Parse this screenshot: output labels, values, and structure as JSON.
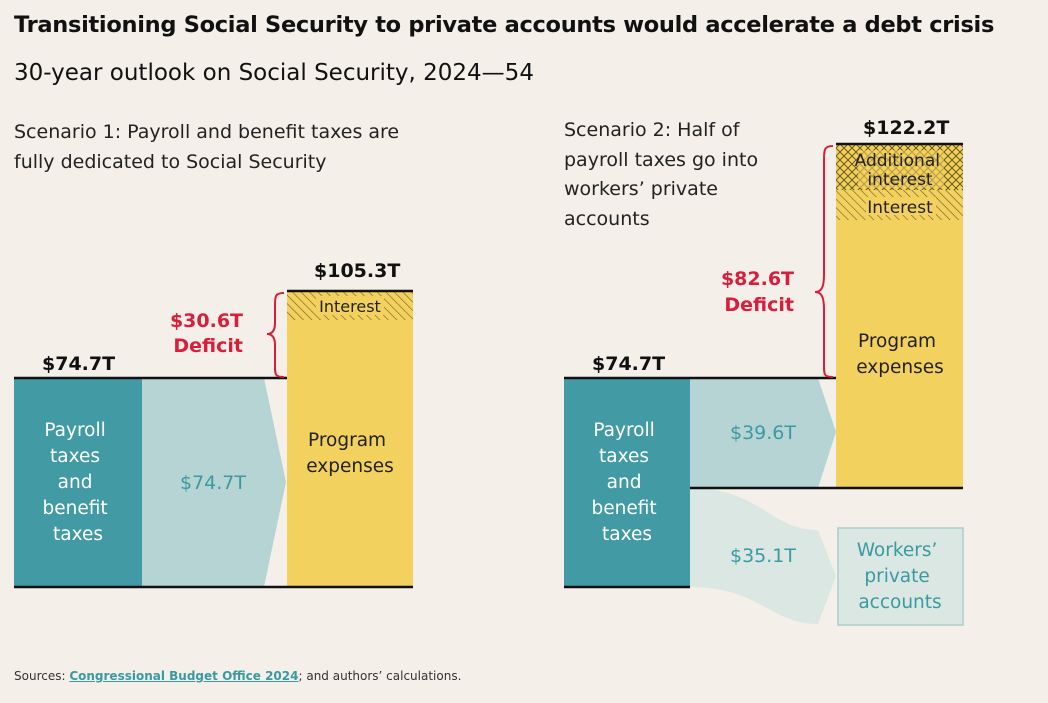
{
  "title": "Transitioning Social Security to private accounts would accelerate a debt crisis",
  "subtitle": "30-year outlook on Social Security, 2024—54",
  "colors": {
    "background": "#f4efe8",
    "teal_dark": "#429ba4",
    "teal_light": "#b7d4d4",
    "teal_lighter": "#dbe7e2",
    "yellow": "#f3d15f",
    "deficit_red": "#d81e3a",
    "teal_text": "#3a9aa1"
  },
  "scenario1": {
    "label": "Scenario 1: Payroll and benefit taxes are fully dedicated to Social Security",
    "revenue_total": "$74.7T",
    "revenue_block": [
      "Payroll",
      "taxes",
      "and",
      "benefit",
      "taxes"
    ],
    "flow_value": "$74.7T",
    "expense_total": "$105.3T",
    "interest_label": "Interest",
    "program_label": [
      "Program",
      "expenses"
    ],
    "deficit_value": "$30.6T",
    "deficit_label": "Deficit"
  },
  "scenario2": {
    "label": "Scenario 2: Half of payroll taxes go into workers’ private accounts",
    "revenue_total": "$74.7T",
    "revenue_block": [
      "Payroll",
      "taxes",
      "and",
      "benefit",
      "taxes"
    ],
    "flow_to_program": "$39.6T",
    "flow_to_private": "$35.1T",
    "expense_total": "$122.2T",
    "additional_interest_label": [
      "Additional",
      "interest"
    ],
    "interest_label": "Interest",
    "program_label": [
      "Program",
      "expenses"
    ],
    "deficit_value": "$82.6T",
    "deficit_label": "Deficit",
    "private_accounts_label": [
      "Workers’",
      "private",
      "accounts"
    ]
  },
  "footer": {
    "prefix": "Sources: ",
    "link_text": "Congressional Budget Office 2024",
    "suffix": "; and authors’ calculations."
  }
}
